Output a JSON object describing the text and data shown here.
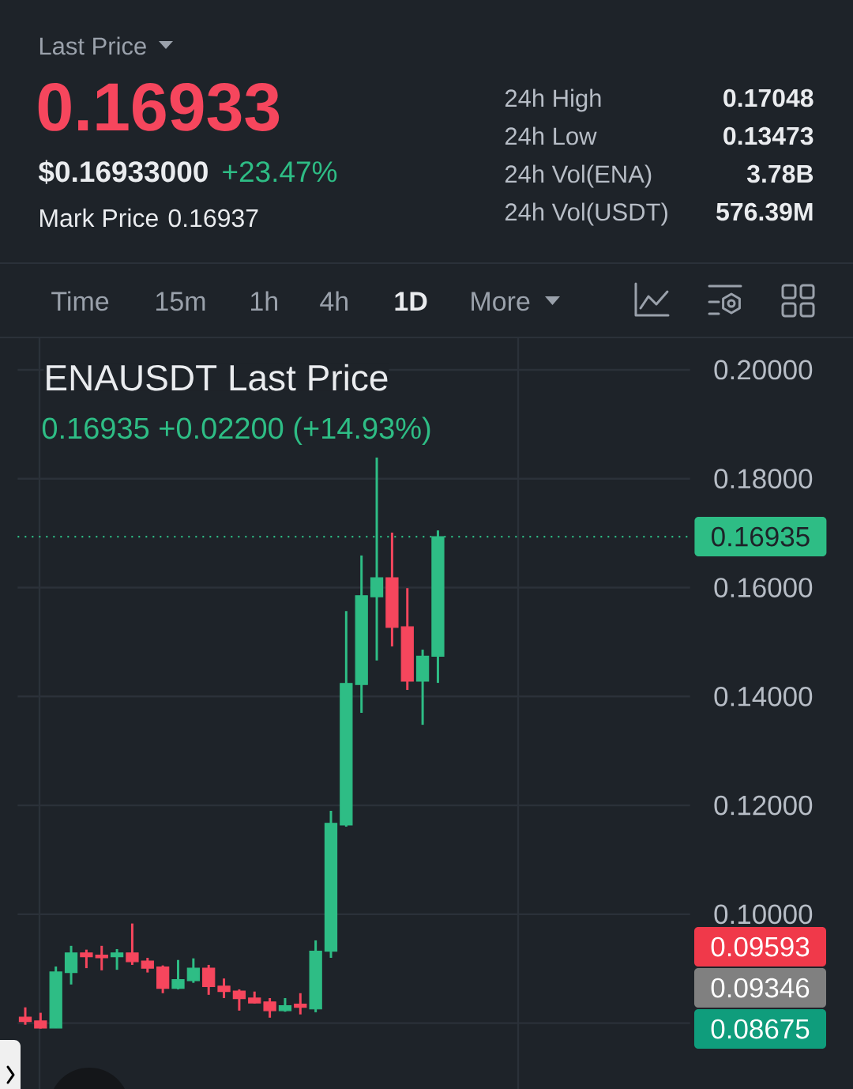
{
  "chart_data": {
    "type": "candlestick",
    "title": "ENAUSDT Last Price",
    "subtitle": "0.16935 +0.02200 (+14.93%)",
    "categories": [
      null,
      null,
      null,
      null,
      null,
      null,
      null,
      null,
      null,
      null,
      null,
      null,
      null,
      null,
      null,
      null,
      null,
      null,
      null,
      null,
      null,
      null,
      null,
      null,
      null,
      null,
      null,
      null,
      null,
      null,
      null,
      null,
      null,
      null,
      null,
      null,
      null,
      null,
      null,
      null,
      null,
      null,
      null,
      null
    ],
    "ohlc": [
      [
        0.0811,
        0.0829,
        0.0797,
        0.0803
      ],
      [
        0.0804,
        0.0819,
        0.079,
        0.0791
      ],
      [
        0.0791,
        0.0904,
        0.0791,
        0.0894
      ],
      [
        0.0893,
        0.0942,
        0.0871,
        0.0929
      ],
      [
        0.0929,
        0.0935,
        0.0901,
        0.0922
      ],
      [
        0.0925,
        0.0942,
        0.0897,
        0.092
      ],
      [
        0.0922,
        0.0936,
        0.0898,
        0.0929
      ],
      [
        0.0929,
        0.0983,
        0.0907,
        0.0913
      ],
      [
        0.0914,
        0.092,
        0.0893,
        0.0901
      ],
      [
        0.0903,
        0.0906,
        0.0855,
        0.0864
      ],
      [
        0.0864,
        0.0916,
        0.0862,
        0.088
      ],
      [
        0.0878,
        0.0919,
        0.0874,
        0.0901
      ],
      [
        0.0901,
        0.0907,
        0.0852,
        0.0867
      ],
      [
        0.0868,
        0.0882,
        0.0846,
        0.0858
      ],
      [
        0.0859,
        0.0862,
        0.0823,
        0.0845
      ],
      [
        0.0846,
        0.0858,
        0.0836,
        0.0837
      ],
      [
        0.0839,
        0.0846,
        0.081,
        0.0823
      ],
      [
        0.0823,
        0.0846,
        0.0821,
        0.0832
      ],
      [
        0.0835,
        0.0855,
        0.0816,
        0.0829
      ],
      [
        0.0826,
        0.0952,
        0.082,
        0.0932
      ],
      [
        0.0932,
        0.119,
        0.092,
        0.1167
      ],
      [
        0.1164,
        0.1557,
        0.1161,
        0.1424
      ],
      [
        0.1422,
        0.1659,
        0.137,
        0.1585
      ],
      [
        0.1583,
        0.1839,
        0.1466,
        0.1618
      ],
      [
        0.1618,
        0.1701,
        0.1492,
        0.1527
      ],
      [
        0.1528,
        0.1599,
        0.1412,
        0.1428
      ],
      [
        0.1428,
        0.1486,
        0.1348,
        0.1474
      ],
      [
        0.1474,
        0.1705,
        0.1425,
        0.16935
      ],
      null,
      null,
      null,
      null,
      null,
      null,
      null,
      null,
      null,
      null,
      null,
      null,
      null,
      null,
      null,
      null
    ],
    "colors": [
      "#f6465d",
      "#f6465d",
      "#2ebd85",
      "#2ebd85",
      "#f6465d",
      "#f6465d",
      "#2ebd85",
      "#f6465d",
      "#f6465d",
      "#f6465d",
      "#2ebd85",
      "#2ebd85",
      "#f6465d",
      "#f6465d",
      "#f6465d",
      "#f6465d",
      "#f6465d",
      "#2ebd85",
      "#f6465d",
      "#2ebd85",
      "#2ebd85",
      "#2ebd85",
      "#2ebd85",
      "#2ebd85",
      "#f6465d",
      "#f6465d",
      "#2ebd85",
      "#2ebd85",
      null,
      null,
      null,
      null,
      null,
      null,
      null,
      null,
      null,
      null,
      null,
      null,
      null,
      null,
      null,
      null
    ],
    "ylim": [
      0.0679,
      0.2058
    ],
    "yticks": [
      {
        "value": 0.08,
        "label": null
      },
      {
        "value": 0.1,
        "label": "0.10000"
      },
      {
        "value": 0.12,
        "label": "0.12000"
      },
      {
        "value": 0.14,
        "label": "0.14000"
      },
      {
        "value": 0.16,
        "label": "0.16000"
      },
      {
        "value": 0.18,
        "label": "0.18000"
      },
      {
        "value": 0.2,
        "label": "0.20000"
      }
    ],
    "tick_labels": "y",
    "grid": "y",
    "ref_lines": [
      {
        "axis": "y",
        "value": 0.16935,
        "label": "0.16935",
        "color": "#2ebd85",
        "line_style": "dotted"
      }
    ],
    "annotations": [
      "Last Price",
      "0.16933",
      "$0.16933000",
      "+23.47%",
      "Mark Price",
      "0.16937",
      "24h High",
      "0.17048",
      "24h Low",
      "0.13473",
      "24h Vol(ENA)",
      "3.78B",
      "24h Vol(USDT)",
      "576.39M",
      "Time",
      "15m",
      "1h",
      "4h",
      "1D",
      "More",
      "0.09593",
      "0.09346",
      "0.08675"
    ]
  }
}
